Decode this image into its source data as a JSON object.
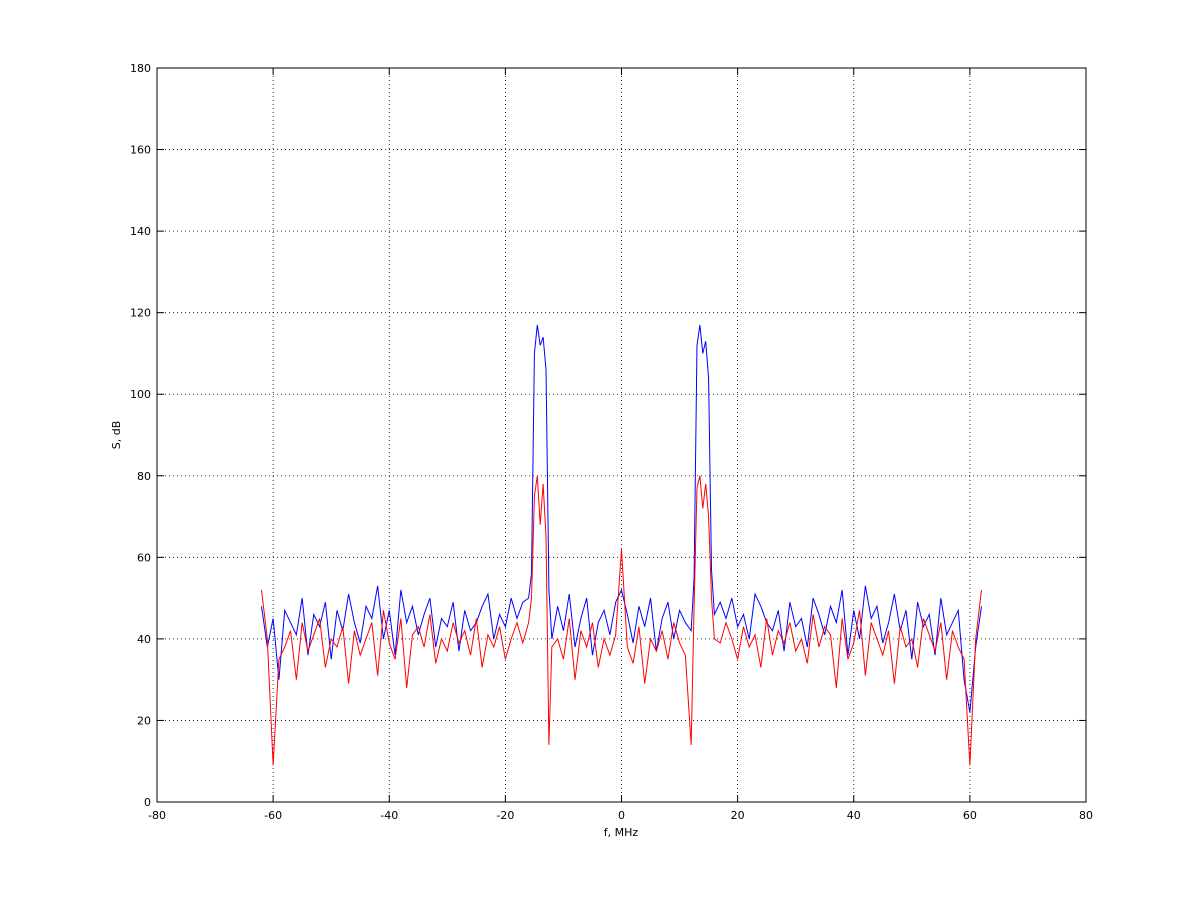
{
  "chart_data": {
    "type": "line",
    "x_label": "f, MHz",
    "y_label": "S, dB",
    "xlim": [
      -80,
      80
    ],
    "xticks": [
      -80,
      -60,
      -40,
      -20,
      0,
      20,
      40,
      60,
      80
    ],
    "ylim": [
      0,
      180
    ],
    "yticks": [
      0,
      20,
      40,
      60,
      80,
      100,
      120,
      140,
      160,
      180
    ],
    "grid": true,
    "x": [
      -62,
      -61,
      -60,
      -59,
      -58,
      -57,
      -56,
      -55,
      -54,
      -53,
      -52,
      -51,
      -50,
      -49,
      -48,
      -47,
      -46,
      -45,
      -44,
      -43,
      -42,
      -41,
      -40,
      -39,
      -38,
      -37,
      -36,
      -35,
      -34,
      -33,
      -32,
      -31,
      -30,
      -29,
      -28,
      -27,
      -26,
      -25,
      -24,
      -23,
      -22,
      -21,
      -20,
      -19,
      -18,
      -17,
      -16,
      -15.5,
      -15,
      -14.5,
      -14,
      -13.5,
      -13,
      -12.5,
      -12,
      -11,
      -10,
      -9,
      -8,
      -7,
      -6,
      -5,
      -4,
      -3,
      -2,
      -1,
      0,
      1,
      2,
      3,
      4,
      5,
      6,
      7,
      8,
      9,
      10,
      11,
      12,
      12.5,
      13,
      13.5,
      14,
      14.5,
      15,
      15.5,
      16,
      17,
      18,
      19,
      20,
      21,
      22,
      23,
      24,
      25,
      26,
      27,
      28,
      29,
      30,
      31,
      32,
      33,
      34,
      35,
      36,
      37,
      38,
      39,
      40,
      41,
      42,
      43,
      44,
      45,
      46,
      47,
      48,
      49,
      50,
      51,
      52,
      53,
      54,
      55,
      56,
      57,
      58,
      59,
      60,
      61,
      62
    ],
    "series": [
      {
        "color": "#0000ff",
        "values": [
          48,
          38,
          45,
          30,
          47,
          44,
          41,
          50,
          36,
          46,
          43,
          49,
          35,
          47,
          42,
          51,
          44,
          39,
          48,
          45,
          53,
          40,
          47,
          36,
          52,
          44,
          48,
          41,
          46,
          50,
          38,
          45,
          43,
          49,
          37,
          47,
          42,
          44,
          48,
          51,
          40,
          46,
          43,
          50,
          45,
          49,
          50,
          56,
          110,
          117,
          112,
          114,
          106,
          52,
          40,
          48,
          42,
          51,
          38,
          45,
          50,
          36,
          44,
          47,
          41,
          49,
          52,
          46,
          39,
          48,
          43,
          50,
          37,
          45,
          49,
          40,
          47,
          44,
          42,
          55,
          112,
          117,
          110,
          113,
          104,
          57,
          46,
          49,
          45,
          50,
          43,
          46,
          40,
          51,
          48,
          44,
          42,
          47,
          37,
          49,
          43,
          45,
          38,
          50,
          46,
          41,
          48,
          44,
          52,
          36,
          47,
          40,
          53,
          45,
          48,
          39,
          44,
          51,
          42,
          47,
          35,
          49,
          43,
          46,
          36,
          50,
          41,
          44,
          47,
          30,
          22,
          38,
          48
        ]
      },
      {
        "color": "#ff0000",
        "values": [
          52,
          40,
          9,
          35,
          38,
          42,
          30,
          44,
          37,
          41,
          45,
          33,
          40,
          38,
          43,
          29,
          42,
          36,
          40,
          44,
          31,
          47,
          39,
          35,
          45,
          28,
          41,
          43,
          38,
          46,
          34,
          40,
          37,
          44,
          39,
          42,
          36,
          45,
          33,
          41,
          38,
          43,
          35,
          40,
          44,
          39,
          44,
          50,
          75,
          80,
          68,
          78,
          65,
          14,
          38,
          40,
          35,
          45,
          30,
          42,
          38,
          44,
          33,
          40,
          36,
          41,
          62,
          38,
          34,
          43,
          29,
          40,
          37,
          42,
          35,
          44,
          39,
          36,
          14,
          48,
          77,
          80,
          72,
          78,
          70,
          50,
          40,
          39,
          44,
          40,
          35,
          43,
          38,
          41,
          33,
          45,
          36,
          42,
          39,
          44,
          37,
          40,
          34,
          46,
          38,
          43,
          41,
          28,
          45,
          35,
          39,
          47,
          31,
          44,
          40,
          36,
          42,
          29,
          43,
          38,
          40,
          33,
          45,
          41,
          37,
          44,
          30,
          42,
          38,
          35,
          9,
          40,
          52
        ]
      }
    ]
  }
}
